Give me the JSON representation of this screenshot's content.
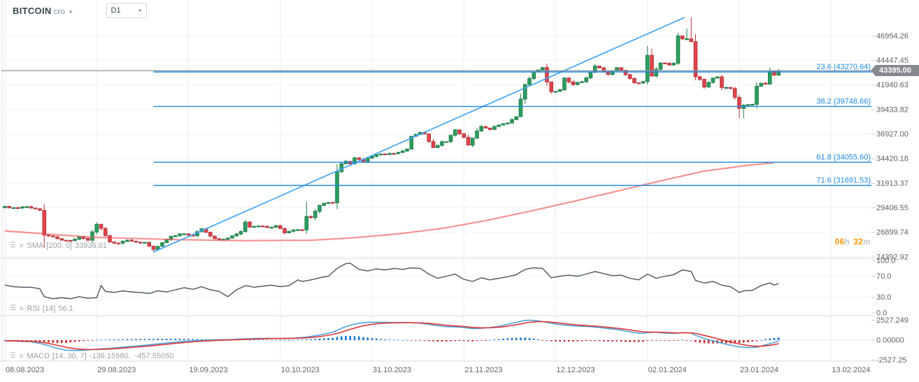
{
  "header": {
    "symbol": "BITCOIN",
    "instrument_type": "CFD",
    "timeframe": "D1"
  },
  "indicators": {
    "sma": {
      "name": "SMA",
      "params": "[200, 0]",
      "value": "33936.01"
    },
    "rsi": {
      "name": "RSI",
      "params": "[14]",
      "value": "56.1"
    },
    "macd": {
      "name": "MACD",
      "params": "[14, 30, 7]",
      "value": "-136.15980,  -457.55050"
    }
  },
  "countdown": {
    "hours": "06",
    "hours_unit": "h",
    "minutes": "32",
    "minutes_unit": "m"
  },
  "price_axis": {
    "current": "43395.00",
    "current_value": 43395.0,
    "ticks": [
      {
        "label": "46954.26",
        "value": 46954.26
      },
      {
        "label": "44447.45",
        "value": 44447.45
      },
      {
        "label": "41940.63",
        "value": 41940.63
      },
      {
        "label": "39433.82",
        "value": 39433.82
      },
      {
        "label": "36927.00",
        "value": 36927.0
      },
      {
        "label": "34420.18",
        "value": 34420.18
      },
      {
        "label": "31913.37",
        "value": 31913.37
      },
      {
        "label": "29406.55",
        "value": 29406.55
      },
      {
        "label": "26899.74",
        "value": 26899.74
      },
      {
        "label": "24392.92",
        "value": 24392.92
      }
    ]
  },
  "rsi_axis": [
    {
      "label": "100.0",
      "value": 100
    },
    {
      "label": "70.0",
      "value": 70
    },
    {
      "label": "30.0",
      "value": 30
    },
    {
      "label": "0.0",
      "value": 0
    }
  ],
  "macd_axis": [
    {
      "label": "2527.249",
      "value": 2527.249
    },
    {
      "label": "0.00000",
      "value": 0
    },
    {
      "label": "-2527.25",
      "value": -2527.249
    }
  ],
  "date_axis": [
    "08.08.2023",
    "29.08.2023",
    "19.09.2023",
    "10.10.2023",
    "31.10.2023",
    "21.11.2023",
    "12.12.2023",
    "02.01.2024",
    "23.01.2024",
    "13.02.2024"
  ],
  "fib_levels": [
    {
      "label": "23.6 (43270.64)",
      "price": 43270.64
    },
    {
      "label": "38.2 (39748.66)",
      "price": 39748.66
    },
    {
      "label": "61.8 (34055.60)",
      "price": 34055.6
    },
    {
      "label": "71.6 (31691.53)",
      "price": 31691.53
    }
  ],
  "colors": {
    "up": "#2ca05f",
    "up_border": "#1d7d49",
    "down": "#e2444a",
    "down_border": "#b5343a",
    "fib": "#1e88e5",
    "trend": "#42a5f5",
    "sma": "#ef5350",
    "rsi_line": "#4a5560",
    "macd_line": "#4da3dd",
    "signal_line": "#e03434",
    "hist_pos": "#1976d2",
    "hist_neg": "#cc2a2a",
    "grid_v": "#ededf0",
    "grid_h": "#f1f2f4",
    "separator": "#d8dbde",
    "axis_text": "#5f6368",
    "tick_mark": "#c8ccd0",
    "current_line": "#8a8f94",
    "badge_bg": "#85898f",
    "countdown_num": "#ff9800"
  },
  "chart_data": {
    "type": "candlestick",
    "title": "BITCOIN CFD daily chart with SMA(200), Fibonacci retracement, RSI(14), MACD(14,30,7)",
    "timeframe": "D1",
    "start_date": "08.08.2023",
    "days": 178,
    "last_close": 43395.0,
    "price_anchors": [
      [
        0,
        29550
      ],
      [
        2,
        29420
      ],
      [
        4,
        29500
      ],
      [
        6,
        29380
      ],
      [
        8,
        29150
      ],
      [
        9,
        26620
      ],
      [
        11,
        26450
      ],
      [
        13,
        26100
      ],
      [
        15,
        26050
      ],
      [
        17,
        26450
      ],
      [
        19,
        26100
      ],
      [
        21,
        27720
      ],
      [
        22,
        27300
      ],
      [
        24,
        25930
      ],
      [
        26,
        25800
      ],
      [
        28,
        26100
      ],
      [
        30,
        25900
      ],
      [
        32,
        25880
      ],
      [
        34,
        25160
      ],
      [
        36,
        25850
      ],
      [
        38,
        26500
      ],
      [
        41,
        26750
      ],
      [
        43,
        26550
      ],
      [
        45,
        27250
      ],
      [
        46,
        26900
      ],
      [
        48,
        26250
      ],
      [
        50,
        26200
      ],
      [
        52,
        26550
      ],
      [
        54,
        27000
      ],
      [
        55,
        27950
      ],
      [
        56,
        27450
      ],
      [
        58,
        27550
      ],
      [
        60,
        27400
      ],
      [
        62,
        27580
      ],
      [
        64,
        26850
      ],
      [
        66,
        27150
      ],
      [
        68,
        27150
      ],
      [
        69,
        28520
      ],
      [
        70,
        28400
      ],
      [
        72,
        29650
      ],
      [
        74,
        29950
      ],
      [
        75,
        29920
      ],
      [
        76,
        33080
      ],
      [
        77,
        33900
      ],
      [
        78,
        34150
      ],
      [
        79,
        33900
      ],
      [
        80,
        34500
      ],
      [
        82,
        34150
      ],
      [
        84,
        34650
      ],
      [
        86,
        34900
      ],
      [
        88,
        34950
      ],
      [
        90,
        35050
      ],
      [
        92,
        35400
      ],
      [
        93,
        36700
      ],
      [
        95,
        37100
      ],
      [
        96,
        36950
      ],
      [
        98,
        35550
      ],
      [
        100,
        36150
      ],
      [
        101,
        36160
      ],
      [
        103,
        37360
      ],
      [
        105,
        36600
      ],
      [
        106,
        35800
      ],
      [
        108,
        37250
      ],
      [
        109,
        37700
      ],
      [
        111,
        37400
      ],
      [
        113,
        37850
      ],
      [
        115,
        38050
      ],
      [
        117,
        38700
      ],
      [
        118,
        40500
      ],
      [
        119,
        41990
      ],
      [
        121,
        43270
      ],
      [
        123,
        43720
      ],
      [
        124,
        42250
      ],
      [
        125,
        41250
      ],
      [
        127,
        41450
      ],
      [
        128,
        42650
      ],
      [
        130,
        41980
      ],
      [
        132,
        42270
      ],
      [
        133,
        42660
      ],
      [
        135,
        43870
      ],
      [
        136,
        43690
      ],
      [
        138,
        43020
      ],
      [
        140,
        43700
      ],
      [
        141,
        43440
      ],
      [
        143,
        42600
      ],
      [
        144,
        42150
      ],
      [
        146,
        42280
      ],
      [
        147,
        44960
      ],
      [
        148,
        42850
      ],
      [
        150,
        44180
      ],
      [
        152,
        43970
      ],
      [
        153,
        44150
      ],
      [
        154,
        46950
      ],
      [
        155,
        46650
      ],
      [
        156,
        46650
      ],
      [
        157,
        46360
      ],
      [
        158,
        42780
      ],
      [
        159,
        42510
      ],
      [
        160,
        41730
      ],
      [
        162,
        42650
      ],
      [
        163,
        42770
      ],
      [
        164,
        41680
      ],
      [
        166,
        41580
      ],
      [
        167,
        40680
      ],
      [
        168,
        39550
      ],
      [
        169,
        39880
      ],
      [
        170,
        39930
      ],
      [
        171,
        39960
      ],
      [
        172,
        41810
      ],
      [
        173,
        42120
      ],
      [
        174,
        42030
      ],
      [
        175,
        43300
      ],
      [
        176,
        42950
      ],
      [
        177,
        43395
      ]
    ],
    "wick_overrides": [
      {
        "d": 9,
        "low": 25350
      },
      {
        "d": 34,
        "low": 24930
      },
      {
        "d": 69,
        "high": 30050
      },
      {
        "d": 147,
        "high": 45920
      },
      {
        "d": 154,
        "high": 47250
      },
      {
        "d": 156,
        "high": 47700
      },
      {
        "d": 157,
        "high": 48840
      },
      {
        "d": 168,
        "low": 38540
      },
      {
        "d": 169,
        "low": 38510
      }
    ],
    "trendline": {
      "from_day": 34,
      "from_price": 24900,
      "to_day": 155.5,
      "to_price": 48830
    },
    "sma_anchors": [
      [
        0,
        27050
      ],
      [
        20,
        26400
      ],
      [
        40,
        26150
      ],
      [
        55,
        26050
      ],
      [
        70,
        26100
      ],
      [
        80,
        26350
      ],
      [
        90,
        26750
      ],
      [
        100,
        27300
      ],
      [
        110,
        28100
      ],
      [
        120,
        29050
      ],
      [
        130,
        30050
      ],
      [
        140,
        31100
      ],
      [
        150,
        32150
      ],
      [
        160,
        33150
      ],
      [
        170,
        33750
      ],
      [
        177,
        34050
      ]
    ],
    "sma_last_value": 33936.01,
    "rsi_anchors": [
      [
        0,
        53
      ],
      [
        2,
        50
      ],
      [
        4,
        49
      ],
      [
        6,
        49
      ],
      [
        8,
        46
      ],
      [
        9,
        31
      ],
      [
        11,
        27
      ],
      [
        13,
        29
      ],
      [
        15,
        27
      ],
      [
        17,
        31
      ],
      [
        19,
        28
      ],
      [
        21,
        29
      ],
      [
        22,
        52
      ],
      [
        23,
        41
      ],
      [
        25,
        39
      ],
      [
        27,
        42
      ],
      [
        29,
        40
      ],
      [
        31,
        39
      ],
      [
        33,
        37
      ],
      [
        35,
        42
      ],
      [
        37,
        40
      ],
      [
        39,
        44
      ],
      [
        41,
        48
      ],
      [
        43,
        45
      ],
      [
        45,
        50
      ],
      [
        47,
        44
      ],
      [
        49,
        41
      ],
      [
        51,
        31
      ],
      [
        53,
        44
      ],
      [
        55,
        52
      ],
      [
        57,
        49
      ],
      [
        59,
        51
      ],
      [
        61,
        53
      ],
      [
        63,
        50
      ],
      [
        65,
        52
      ],
      [
        67,
        63
      ],
      [
        68,
        60
      ],
      [
        70,
        63
      ],
      [
        72,
        67
      ],
      [
        74,
        70
      ],
      [
        76,
        85
      ],
      [
        78,
        94
      ],
      [
        79,
        95
      ],
      [
        81,
        83
      ],
      [
        83,
        80
      ],
      [
        85,
        84
      ],
      [
        87,
        82
      ],
      [
        89,
        85
      ],
      [
        91,
        83
      ],
      [
        93,
        86
      ],
      [
        95,
        85
      ],
      [
        97,
        74
      ],
      [
        99,
        66
      ],
      [
        101,
        70
      ],
      [
        103,
        74
      ],
      [
        105,
        64
      ],
      [
        107,
        60
      ],
      [
        109,
        67
      ],
      [
        111,
        63
      ],
      [
        113,
        66
      ],
      [
        115,
        69
      ],
      [
        117,
        73
      ],
      [
        119,
        83
      ],
      [
        121,
        86
      ],
      [
        123,
        85
      ],
      [
        125,
        67
      ],
      [
        127,
        70
      ],
      [
        129,
        72
      ],
      [
        131,
        70
      ],
      [
        133,
        74
      ],
      [
        135,
        79
      ],
      [
        137,
        75
      ],
      [
        139,
        71
      ],
      [
        141,
        72
      ],
      [
        143,
        66
      ],
      [
        145,
        63
      ],
      [
        147,
        74
      ],
      [
        149,
        66
      ],
      [
        151,
        70
      ],
      [
        153,
        73
      ],
      [
        155,
        82
      ],
      [
        157,
        79
      ],
      [
        158,
        62
      ],
      [
        160,
        57
      ],
      [
        162,
        60
      ],
      [
        164,
        53
      ],
      [
        166,
        50
      ],
      [
        168,
        39
      ],
      [
        169,
        42
      ],
      [
        171,
        43
      ],
      [
        173,
        52
      ],
      [
        175,
        57
      ],
      [
        176,
        53
      ],
      [
        177,
        56.1
      ]
    ],
    "rsi_last_value": 56.1,
    "macd_anchors": [
      [
        0,
        -80
      ],
      [
        3,
        -150
      ],
      [
        6,
        -200
      ],
      [
        9,
        -550
      ],
      [
        12,
        -1050
      ],
      [
        14,
        -1280
      ],
      [
        16,
        -1320
      ],
      [
        18,
        -1300
      ],
      [
        21,
        -1150
      ],
      [
        24,
        -1050
      ],
      [
        27,
        -900
      ],
      [
        30,
        -750
      ],
      [
        33,
        -600
      ],
      [
        36,
        -420
      ],
      [
        39,
        -250
      ],
      [
        42,
        -120
      ],
      [
        45,
        -30
      ],
      [
        48,
        30
      ],
      [
        51,
        60
      ],
      [
        54,
        140
      ],
      [
        57,
        200
      ],
      [
        60,
        230
      ],
      [
        63,
        210
      ],
      [
        66,
        240
      ],
      [
        69,
        380
      ],
      [
        72,
        650
      ],
      [
        75,
        1000
      ],
      [
        77,
        1500
      ],
      [
        79,
        1900
      ],
      [
        81,
        2150
      ],
      [
        83,
        2250
      ],
      [
        85,
        2280
      ],
      [
        87,
        2250
      ],
      [
        89,
        2230
      ],
      [
        91,
        2220
      ],
      [
        93,
        2200
      ],
      [
        95,
        2150
      ],
      [
        97,
        2000
      ],
      [
        99,
        1820
      ],
      [
        101,
        1700
      ],
      [
        103,
        1680
      ],
      [
        105,
        1600
      ],
      [
        107,
        1450
      ],
      [
        109,
        1500
      ],
      [
        111,
        1600
      ],
      [
        113,
        1750
      ],
      [
        115,
        2000
      ],
      [
        117,
        2250
      ],
      [
        119,
        2500
      ],
      [
        120,
        2527
      ],
      [
        122,
        2450
      ],
      [
        124,
        2250
      ],
      [
        126,
        2050
      ],
      [
        128,
        1900
      ],
      [
        130,
        1800
      ],
      [
        132,
        1750
      ],
      [
        134,
        1700
      ],
      [
        136,
        1600
      ],
      [
        138,
        1450
      ],
      [
        140,
        1350
      ],
      [
        142,
        1150
      ],
      [
        144,
        950
      ],
      [
        146,
        850
      ],
      [
        147,
        950
      ],
      [
        149,
        1000
      ],
      [
        151,
        900
      ],
      [
        153,
        850
      ],
      [
        155,
        950
      ],
      [
        157,
        900
      ],
      [
        158,
        600
      ],
      [
        160,
        200
      ],
      [
        162,
        -100
      ],
      [
        164,
        -400
      ],
      [
        166,
        -650
      ],
      [
        168,
        -850
      ],
      [
        170,
        -950
      ],
      [
        172,
        -900
      ],
      [
        174,
        -600
      ],
      [
        176,
        -300
      ],
      [
        177,
        -136.16
      ]
    ],
    "macd_last_values": [
      -136.1598,
      -457.5505
    ]
  }
}
